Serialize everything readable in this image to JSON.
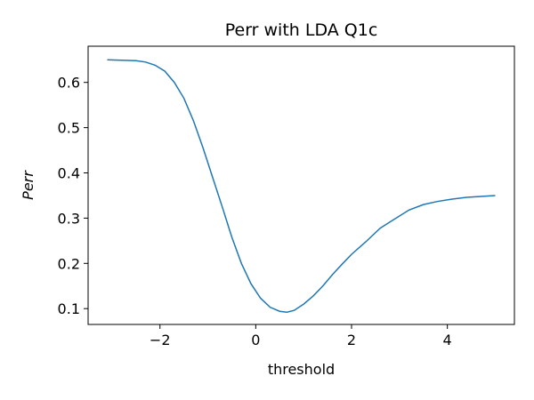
{
  "chart_data": {
    "type": "line",
    "title": "Perr with LDA Q1c",
    "xlabel": "threshold",
    "ylabel": "Perr",
    "xlim": [
      -3.5,
      5.4
    ],
    "ylim": [
      0.065,
      0.68
    ],
    "xticks": [
      -2,
      0,
      2,
      4
    ],
    "xtick_labels": [
      "−2",
      "0",
      "2",
      "4"
    ],
    "yticks": [
      0.1,
      0.2,
      0.3,
      0.4,
      0.5,
      0.6
    ],
    "ytick_labels": [
      "0.1",
      "0.2",
      "0.3",
      "0.4",
      "0.5",
      "0.6"
    ],
    "grid": false,
    "line_color": "#1f77b4",
    "series": [
      {
        "x": [
          -3.1,
          -2.8,
          -2.5,
          -2.3,
          -2.1,
          -1.9,
          -1.7,
          -1.5,
          -1.3,
          -1.1,
          -0.9,
          -0.7,
          -0.5,
          -0.3,
          -0.1,
          0.1,
          0.3,
          0.5,
          0.65,
          0.8,
          1.0,
          1.2,
          1.4,
          1.6,
          1.8,
          2.0,
          2.3,
          2.6,
          2.9,
          3.2,
          3.5,
          3.8,
          4.1,
          4.4,
          4.7,
          5.0
        ],
        "y": [
          0.65,
          0.649,
          0.648,
          0.645,
          0.638,
          0.625,
          0.6,
          0.565,
          0.515,
          0.455,
          0.39,
          0.325,
          0.258,
          0.2,
          0.155,
          0.123,
          0.103,
          0.094,
          0.092,
          0.096,
          0.11,
          0.128,
          0.15,
          0.175,
          0.198,
          0.22,
          0.248,
          0.278,
          0.298,
          0.318,
          0.33,
          0.337,
          0.342,
          0.346,
          0.348,
          0.35
        ]
      }
    ]
  }
}
